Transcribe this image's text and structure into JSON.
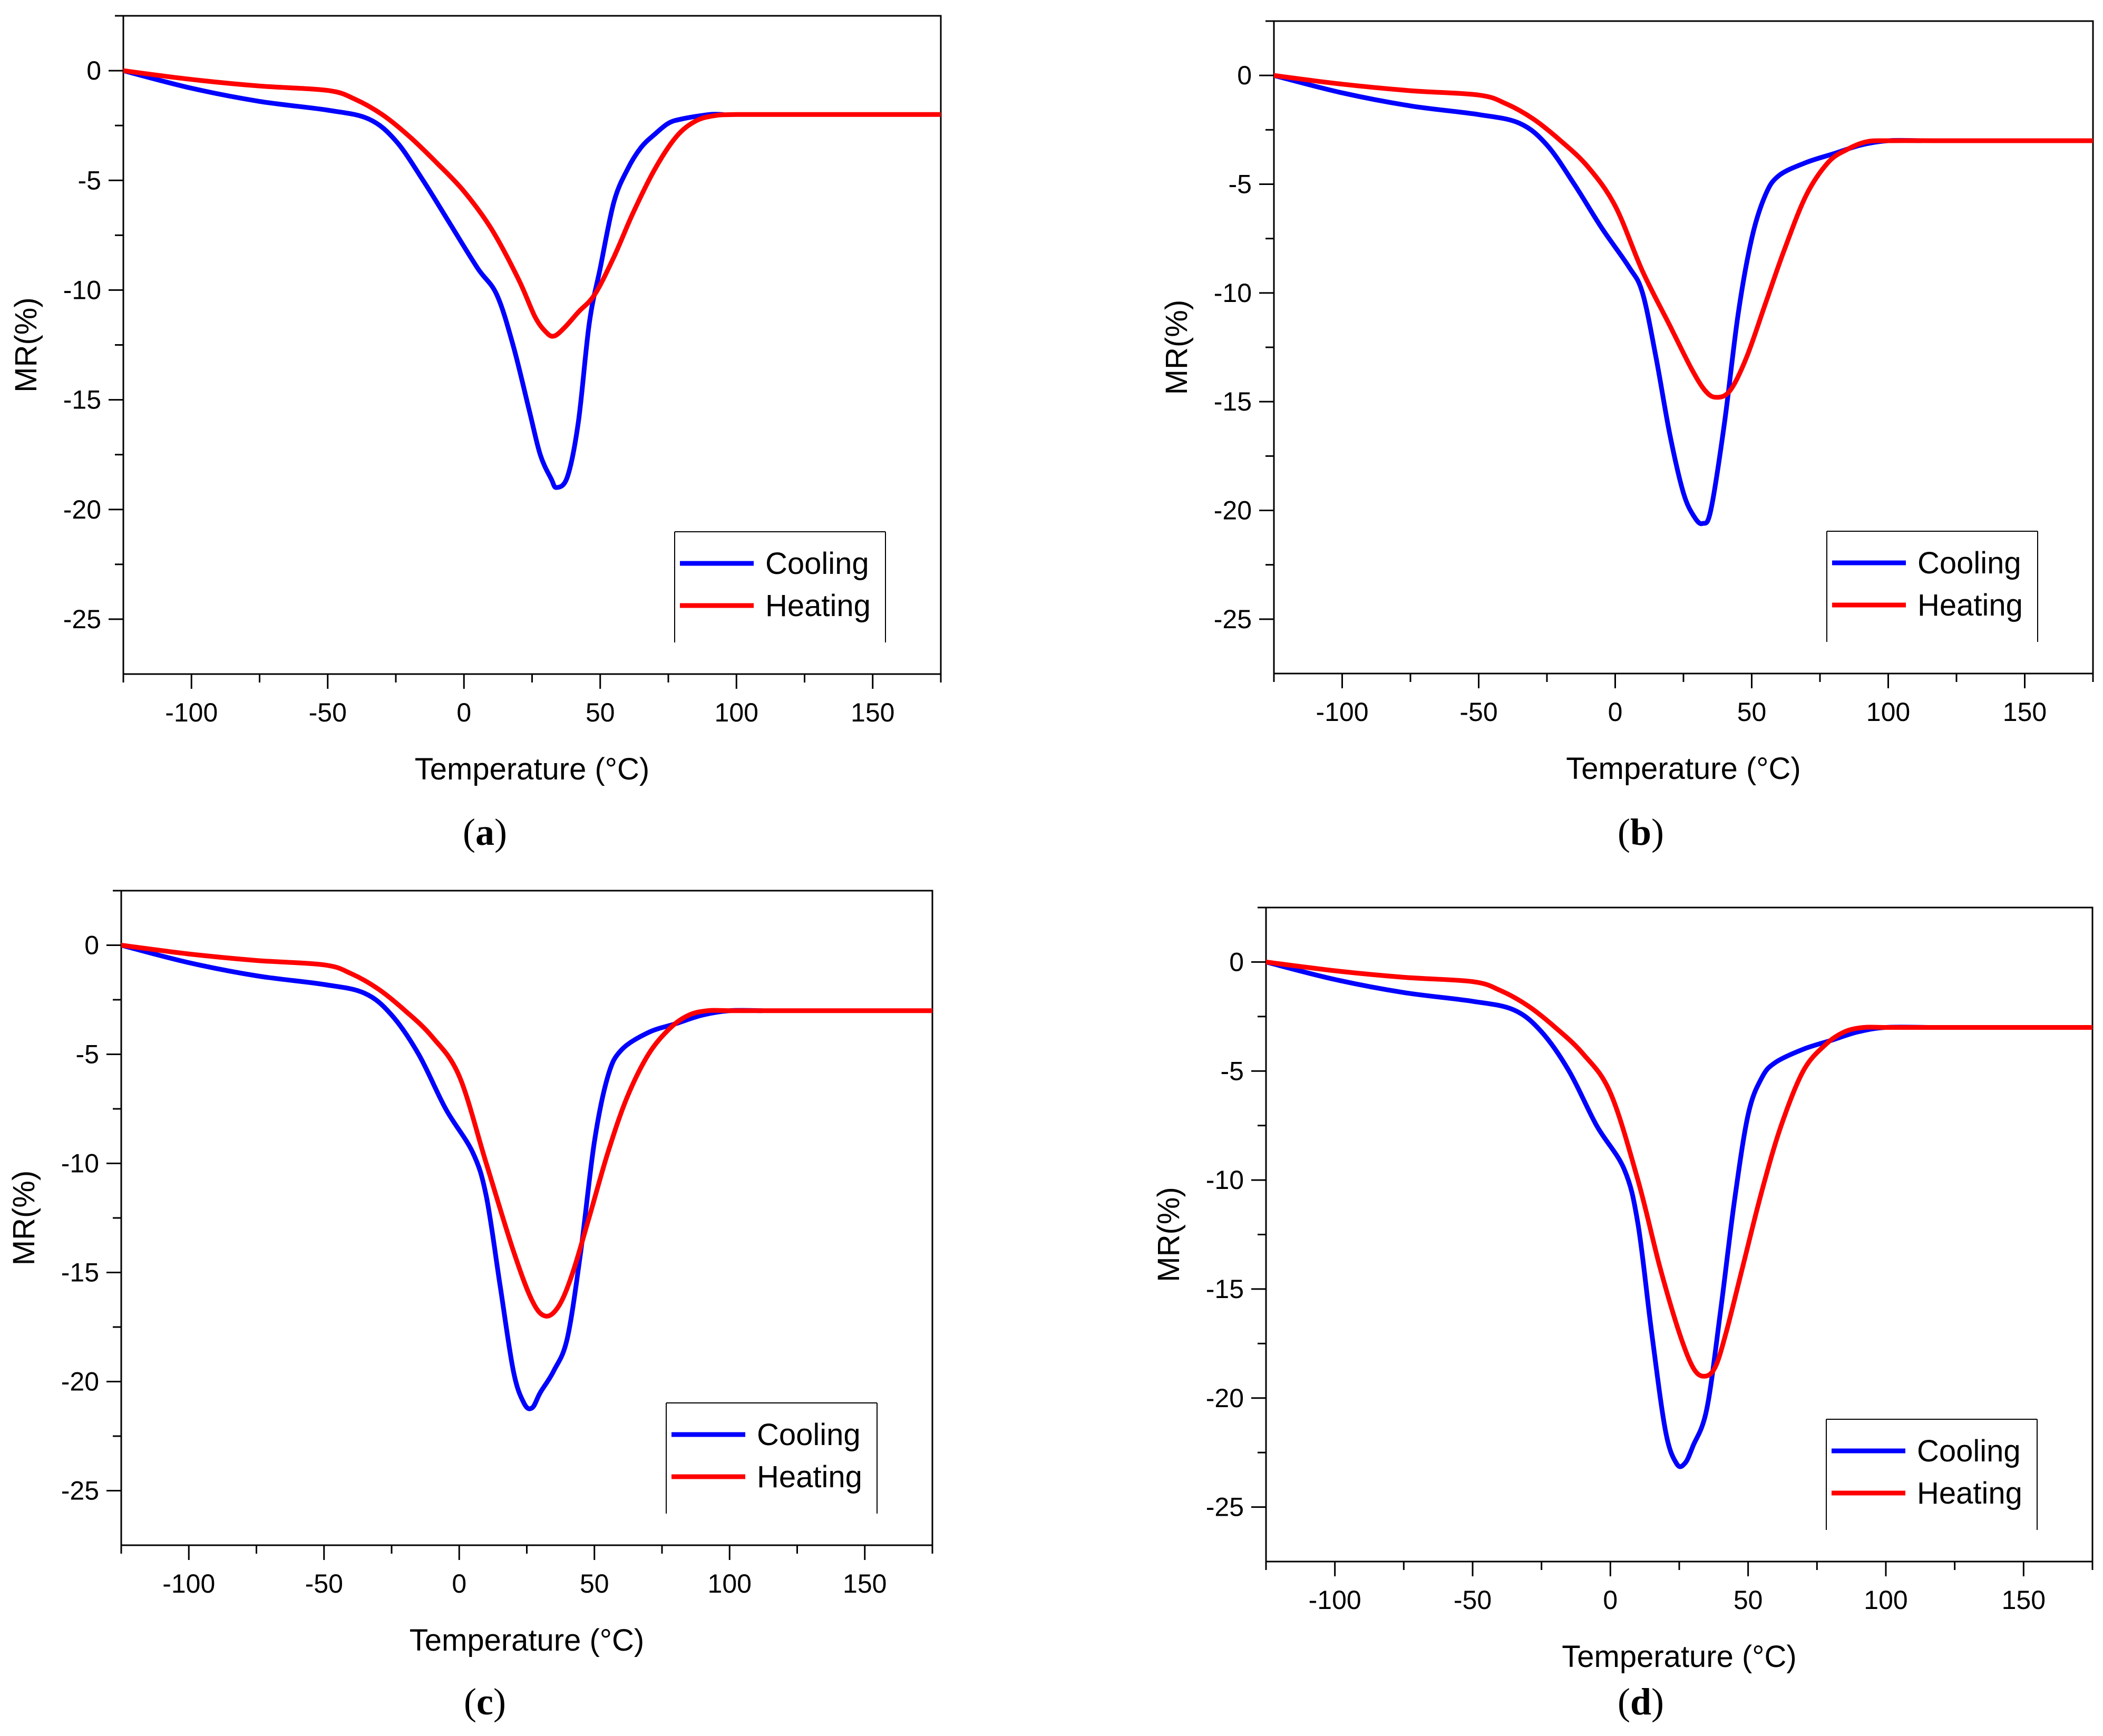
{
  "figure": {
    "colors": {
      "cooling": "#0000ff",
      "heating": "#ff0000",
      "axis": "#000000",
      "background": "#ffffff"
    }
  },
  "chart_data": [
    {
      "id": "a",
      "type": "line",
      "caption_open": "(",
      "caption_letter": "a",
      "caption_close": ")",
      "xlabel": "Temperature (°C)",
      "ylabel": "MR(%)",
      "xlim": [
        -125,
        175
      ],
      "ylim": [
        -27.5,
        2.5
      ],
      "xticks": [
        -100,
        -50,
        0,
        50,
        100,
        150
      ],
      "xtick_labels": [
        "-100",
        "-50",
        "0",
        "50",
        "100",
        "150"
      ],
      "yticks": [
        0,
        -5,
        -10,
        -15,
        -20,
        -25
      ],
      "ytick_labels": [
        "0",
        "-5",
        "-10",
        "-15",
        "-20",
        "-25"
      ],
      "legend_position": "bottom-right",
      "series": [
        {
          "name": "Cooling",
          "color": "#0000ff",
          "x": [
            -125,
            -100,
            -75,
            -50,
            -35,
            -25,
            -15,
            -5,
            5,
            12,
            18,
            24,
            28,
            32,
            34,
            38,
            42,
            46,
            50,
            55,
            60,
            65,
            70,
            75,
            80,
            90,
            95
          ],
          "y": [
            0,
            -0.8,
            -1.4,
            -1.8,
            -2.2,
            -3.2,
            -5,
            -7,
            -9,
            -10.2,
            -12.5,
            -15.5,
            -17.5,
            -18.6,
            -19,
            -18.5,
            -16,
            -11.5,
            -9,
            -6,
            -4.5,
            -3.5,
            -2.9,
            -2.4,
            -2.2,
            -2.0,
            -2.0
          ]
        },
        {
          "name": "Heating",
          "color": "#ff0000",
          "x": [
            -125,
            -100,
            -75,
            -50,
            -40,
            -30,
            -20,
            -10,
            0,
            10,
            20,
            26,
            30,
            33,
            37,
            42,
            48,
            55,
            62,
            70,
            78,
            85,
            92,
            100,
            120,
            150,
            175
          ],
          "y": [
            0,
            -0.4,
            -0.7,
            -0.9,
            -1.3,
            -2,
            -3,
            -4.2,
            -5.5,
            -7.2,
            -9.5,
            -11.2,
            -11.9,
            -12.1,
            -11.7,
            -11,
            -10.2,
            -8.5,
            -6.5,
            -4.5,
            -3,
            -2.3,
            -2.05,
            -2,
            -2,
            -2,
            -2
          ]
        }
      ]
    },
    {
      "id": "b",
      "type": "line",
      "caption_open": "(",
      "caption_letter": "b",
      "caption_close": ")",
      "xlabel": "Temperature (°C)",
      "ylabel": "MR(%)",
      "xlim": [
        -125,
        175
      ],
      "ylim": [
        -27.5,
        2.5
      ],
      "xticks": [
        -100,
        -50,
        0,
        50,
        100,
        150
      ],
      "xtick_labels": [
        "-100",
        "-50",
        "0",
        "50",
        "100",
        "150"
      ],
      "yticks": [
        0,
        -5,
        -10,
        -15,
        -20,
        -25
      ],
      "ytick_labels": [
        "0",
        "-5",
        "-10",
        "-15",
        "-20",
        "-25"
      ],
      "legend_position": "bottom-right",
      "series": [
        {
          "name": "Cooling",
          "color": "#0000ff",
          "x": [
            -125,
            -100,
            -75,
            -50,
            -35,
            -25,
            -15,
            -5,
            5,
            10,
            15,
            20,
            25,
            29,
            32,
            35,
            40,
            45,
            50,
            55,
            60,
            70,
            80,
            90,
            100,
            112
          ],
          "y": [
            0,
            -0.8,
            -1.4,
            -1.8,
            -2.2,
            -3.2,
            -5,
            -7,
            -8.8,
            -10,
            -13,
            -16.5,
            -19.2,
            -20.3,
            -20.6,
            -20,
            -16,
            -11,
            -7.5,
            -5.5,
            -4.6,
            -4.0,
            -3.6,
            -3.2,
            -3.0,
            -3.0
          ]
        },
        {
          "name": "Heating",
          "color": "#ff0000",
          "x": [
            -125,
            -100,
            -75,
            -50,
            -40,
            -30,
            -20,
            -10,
            0,
            10,
            20,
            28,
            33,
            37,
            42,
            48,
            55,
            62,
            70,
            78,
            85,
            92,
            100,
            120,
            150,
            175
          ],
          "y": [
            0,
            -0.4,
            -0.7,
            -0.9,
            -1.3,
            -2,
            -3,
            -4.2,
            -6,
            -9,
            -11.5,
            -13.5,
            -14.5,
            -14.8,
            -14.5,
            -13,
            -10.5,
            -8,
            -5.5,
            -4,
            -3.4,
            -3.05,
            -3,
            -3,
            -3,
            -3
          ]
        }
      ]
    },
    {
      "id": "c",
      "type": "line",
      "caption_open": "(",
      "caption_letter": "c",
      "caption_close": ")",
      "xlabel": "Temperature (°C)",
      "ylabel": "MR(%)",
      "xlim": [
        -125,
        175
      ],
      "ylim": [
        -27.5,
        2.5
      ],
      "xticks": [
        -100,
        -50,
        0,
        50,
        100,
        150
      ],
      "xtick_labels": [
        "-100",
        "-50",
        "0",
        "50",
        "100",
        "150"
      ],
      "yticks": [
        0,
        -5,
        -10,
        -15,
        -20,
        -25
      ],
      "ytick_labels": [
        "0",
        "-5",
        "-10",
        "-15",
        "-20",
        "-25"
      ],
      "legend_position": "bottom-right",
      "series": [
        {
          "name": "Cooling",
          "color": "#0000ff",
          "x": [
            -125,
            -100,
            -75,
            -50,
            -35,
            -25,
            -15,
            -5,
            5,
            10,
            15,
            20,
            24,
            27,
            30,
            35,
            40,
            45,
            50,
            55,
            60,
            70,
            80,
            90,
            100,
            112
          ],
          "y": [
            0,
            -0.8,
            -1.4,
            -1.8,
            -2.2,
            -3.2,
            -5,
            -7.5,
            -9.5,
            -11.5,
            -15.5,
            -19.5,
            -21,
            -21.2,
            -20.5,
            -19.5,
            -18,
            -14,
            -9,
            -6,
            -4.8,
            -4.0,
            -3.6,
            -3.2,
            -3.0,
            -3.0
          ]
        },
        {
          "name": "Heating",
          "color": "#ff0000",
          "x": [
            -125,
            -100,
            -75,
            -50,
            -40,
            -30,
            -20,
            -10,
            0,
            10,
            20,
            27,
            32,
            37,
            42,
            48,
            55,
            62,
            70,
            78,
            85,
            92,
            100,
            120,
            150,
            175
          ],
          "y": [
            0,
            -0.4,
            -0.7,
            -0.9,
            -1.3,
            -2,
            -3,
            -4.2,
            -6,
            -10,
            -14,
            -16.3,
            -17,
            -16.5,
            -15,
            -12.5,
            -9.5,
            -7,
            -5,
            -3.8,
            -3.2,
            -3.0,
            -3,
            -3,
            -3,
            -3
          ]
        }
      ]
    },
    {
      "id": "d",
      "type": "line",
      "caption_open": "(",
      "caption_letter": "d",
      "caption_close": ")",
      "xlabel": "Temperature (°C)",
      "ylabel": "MR(%)",
      "xlim": [
        -125,
        175
      ],
      "ylim": [
        -27.5,
        2.5
      ],
      "xticks": [
        -100,
        -50,
        0,
        50,
        100,
        150
      ],
      "xtick_labels": [
        "-100",
        "-50",
        "0",
        "50",
        "100",
        "150"
      ],
      "yticks": [
        0,
        -5,
        -10,
        -15,
        -20,
        -25
      ],
      "ytick_labels": [
        "0",
        "-5",
        "-10",
        "-15",
        "-20",
        "-25"
      ],
      "legend_position": "bottom-right",
      "series": [
        {
          "name": "Cooling",
          "color": "#0000ff",
          "x": [
            -125,
            -100,
            -75,
            -50,
            -35,
            -25,
            -15,
            -5,
            5,
            10,
            15,
            20,
            24,
            27,
            30,
            35,
            40,
            45,
            50,
            55,
            60,
            70,
            80,
            90,
            100,
            116
          ],
          "y": [
            0,
            -0.8,
            -1.4,
            -1.8,
            -2.2,
            -3.2,
            -5,
            -7.5,
            -9.5,
            -12,
            -17,
            -21.5,
            -23,
            -23,
            -22.2,
            -20.5,
            -16,
            -11,
            -7,
            -5.3,
            -4.6,
            -4.0,
            -3.6,
            -3.2,
            -3.0,
            -3.0
          ]
        },
        {
          "name": "Heating",
          "color": "#ff0000",
          "x": [
            -125,
            -100,
            -75,
            -50,
            -40,
            -30,
            -20,
            -10,
            0,
            10,
            18,
            25,
            30,
            34,
            38,
            42,
            48,
            55,
            62,
            70,
            78,
            85,
            92,
            100,
            120,
            150,
            175
          ],
          "y": [
            0,
            -0.4,
            -0.7,
            -0.9,
            -1.3,
            -2,
            -3,
            -4.2,
            -6,
            -10,
            -14,
            -17,
            -18.6,
            -19,
            -18.6,
            -17,
            -14,
            -10.5,
            -7.5,
            -5,
            -3.8,
            -3.2,
            -3.0,
            -3,
            -3,
            -3,
            -3
          ]
        }
      ]
    }
  ]
}
